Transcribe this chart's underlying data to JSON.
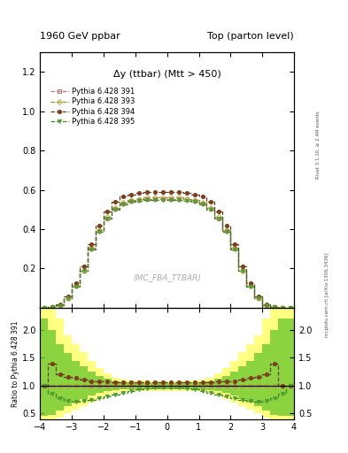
{
  "title_left": "1960 GeV ppbar",
  "title_right": "Top (parton level)",
  "inner_title": "Δy (ttbar) (Mtt > 450)",
  "watermark": "(MC_FBA_TTBAR)",
  "right_label_top": "Rivet 3.1.10, ≥ 2.4M events",
  "right_label_bot": "mcplots.cern.ch [arXiv:1306.3436]",
  "ratio_ylabel": "Ratio to Pythia 6.428 391",
  "legend_entries": [
    "Pythia 6.428 391",
    "Pythia 6.428 393",
    "Pythia 6.428 394",
    "Pythia 6.428 395"
  ],
  "line_colors": [
    "#c07070",
    "#909030",
    "#604020",
    "#408030"
  ],
  "line_styles": [
    "--",
    "-.",
    "--",
    "-."
  ],
  "marker_styles": [
    "s",
    "D",
    "o",
    "v"
  ],
  "marker_colors": [
    "#c07070",
    "#b0b040",
    "#804020",
    "#50a030"
  ],
  "marker_face_open": [
    true,
    true,
    false,
    false
  ],
  "xlim": [
    -4,
    4
  ],
  "main_ylim": [
    0,
    1.3
  ],
  "ratio_ylim": [
    0.4,
    2.4
  ],
  "main_yticks": [
    0.2,
    0.4,
    0.6,
    0.8,
    1.0,
    1.2
  ],
  "ratio_yticks": [
    0.5,
    1.0,
    1.5,
    2.0
  ],
  "xticks": [
    -4,
    -3,
    -2,
    -1,
    0,
    1,
    2,
    3,
    4
  ],
  "bin_edges": [
    -4.0,
    -3.75,
    -3.5,
    -3.25,
    -3.0,
    -2.75,
    -2.5,
    -2.25,
    -2.0,
    -1.75,
    -1.5,
    -1.25,
    -1.0,
    -0.75,
    -0.5,
    -0.25,
    0.0,
    0.25,
    0.5,
    0.75,
    1.0,
    1.25,
    1.5,
    1.75,
    2.0,
    2.25,
    2.5,
    2.75,
    3.0,
    3.25,
    3.5,
    3.75,
    4.0
  ],
  "main_data_391": [
    0.0,
    0.003,
    0.015,
    0.05,
    0.11,
    0.19,
    0.3,
    0.39,
    0.455,
    0.505,
    0.53,
    0.545,
    0.55,
    0.555,
    0.555,
    0.555,
    0.555,
    0.555,
    0.555,
    0.545,
    0.53,
    0.505,
    0.455,
    0.39,
    0.3,
    0.19,
    0.11,
    0.05,
    0.015,
    0.003,
    0.0,
    0.0
  ],
  "main_data_393": [
    0.0,
    0.003,
    0.015,
    0.05,
    0.11,
    0.19,
    0.305,
    0.395,
    0.465,
    0.51,
    0.535,
    0.55,
    0.555,
    0.56,
    0.56,
    0.56,
    0.56,
    0.56,
    0.555,
    0.55,
    0.535,
    0.51,
    0.465,
    0.395,
    0.305,
    0.19,
    0.11,
    0.05,
    0.015,
    0.003,
    0.0,
    0.0
  ],
  "main_data_394": [
    0.0,
    0.004,
    0.018,
    0.058,
    0.125,
    0.21,
    0.325,
    0.42,
    0.49,
    0.54,
    0.565,
    0.575,
    0.585,
    0.59,
    0.59,
    0.59,
    0.59,
    0.59,
    0.585,
    0.575,
    0.565,
    0.54,
    0.49,
    0.42,
    0.325,
    0.21,
    0.125,
    0.058,
    0.018,
    0.004,
    0.0,
    0.0
  ],
  "main_data_395": [
    0.0,
    0.003,
    0.014,
    0.048,
    0.108,
    0.188,
    0.298,
    0.388,
    0.452,
    0.5,
    0.525,
    0.54,
    0.545,
    0.55,
    0.55,
    0.55,
    0.55,
    0.55,
    0.545,
    0.54,
    0.525,
    0.5,
    0.452,
    0.388,
    0.298,
    0.188,
    0.108,
    0.048,
    0.014,
    0.003,
    0.0,
    0.0
  ],
  "ratio_391": [
    1.0,
    1.0,
    1.0,
    1.0,
    1.0,
    1.0,
    1.0,
    1.0,
    1.0,
    1.0,
    1.0,
    1.0,
    1.0,
    1.0,
    1.0,
    1.0,
    1.0,
    1.0,
    1.0,
    1.0,
    1.0,
    1.0,
    1.0,
    1.0,
    1.0,
    1.0,
    1.0,
    1.0,
    1.0,
    1.0,
    1.0,
    1.0
  ],
  "ratio_393": [
    1.0,
    1.0,
    1.0,
    1.0,
    1.0,
    1.0,
    1.016,
    1.013,
    1.022,
    1.01,
    1.01,
    1.009,
    1.009,
    1.009,
    1.009,
    1.009,
    1.009,
    1.009,
    1.009,
    1.009,
    1.01,
    1.01,
    1.022,
    1.013,
    1.016,
    1.0,
    1.0,
    1.0,
    1.0,
    1.0,
    1.0,
    1.0
  ],
  "ratio_394": [
    1.0,
    1.4,
    1.2,
    1.16,
    1.14,
    1.105,
    1.083,
    1.077,
    1.077,
    1.069,
    1.066,
    1.055,
    1.064,
    1.063,
    1.063,
    1.063,
    1.063,
    1.063,
    1.064,
    1.055,
    1.066,
    1.069,
    1.077,
    1.077,
    1.083,
    1.105,
    1.14,
    1.16,
    1.2,
    1.4,
    1.0,
    1.0
  ],
  "ratio_395": [
    1.0,
    0.85,
    0.77,
    0.72,
    0.71,
    0.72,
    0.74,
    0.77,
    0.8,
    0.84,
    0.87,
    0.9,
    0.93,
    0.95,
    0.96,
    0.97,
    0.97,
    0.96,
    0.95,
    0.93,
    0.9,
    0.87,
    0.84,
    0.8,
    0.77,
    0.74,
    0.72,
    0.71,
    0.72,
    0.77,
    0.85,
    1.0
  ],
  "band_yellow_lo": [
    0.4,
    0.4,
    0.42,
    0.5,
    0.57,
    0.63,
    0.7,
    0.76,
    0.82,
    0.87,
    0.89,
    0.9,
    0.9,
    0.9,
    0.9,
    0.9,
    0.9,
    0.9,
    0.9,
    0.9,
    0.89,
    0.87,
    0.82,
    0.76,
    0.7,
    0.63,
    0.57,
    0.5,
    0.42,
    0.4,
    0.4,
    0.4
  ],
  "band_yellow_hi": [
    2.4,
    2.4,
    2.2,
    1.9,
    1.75,
    1.6,
    1.45,
    1.32,
    1.22,
    1.14,
    1.11,
    1.1,
    1.09,
    1.09,
    1.08,
    1.08,
    1.08,
    1.08,
    1.09,
    1.09,
    1.11,
    1.14,
    1.22,
    1.32,
    1.45,
    1.6,
    1.75,
    1.9,
    2.2,
    2.4,
    2.4,
    2.4
  ],
  "band_green_lo": [
    0.45,
    0.47,
    0.55,
    0.63,
    0.7,
    0.76,
    0.82,
    0.87,
    0.9,
    0.92,
    0.93,
    0.93,
    0.93,
    0.93,
    0.93,
    0.93,
    0.93,
    0.93,
    0.93,
    0.93,
    0.93,
    0.92,
    0.9,
    0.87,
    0.82,
    0.76,
    0.7,
    0.63,
    0.55,
    0.47,
    0.45,
    0.45
  ],
  "band_green_hi": [
    2.2,
    2.0,
    1.75,
    1.58,
    1.45,
    1.35,
    1.25,
    1.18,
    1.12,
    1.08,
    1.06,
    1.055,
    1.05,
    1.05,
    1.05,
    1.05,
    1.05,
    1.05,
    1.05,
    1.055,
    1.06,
    1.08,
    1.12,
    1.18,
    1.25,
    1.35,
    1.45,
    1.58,
    1.75,
    2.0,
    2.2,
    2.2
  ]
}
